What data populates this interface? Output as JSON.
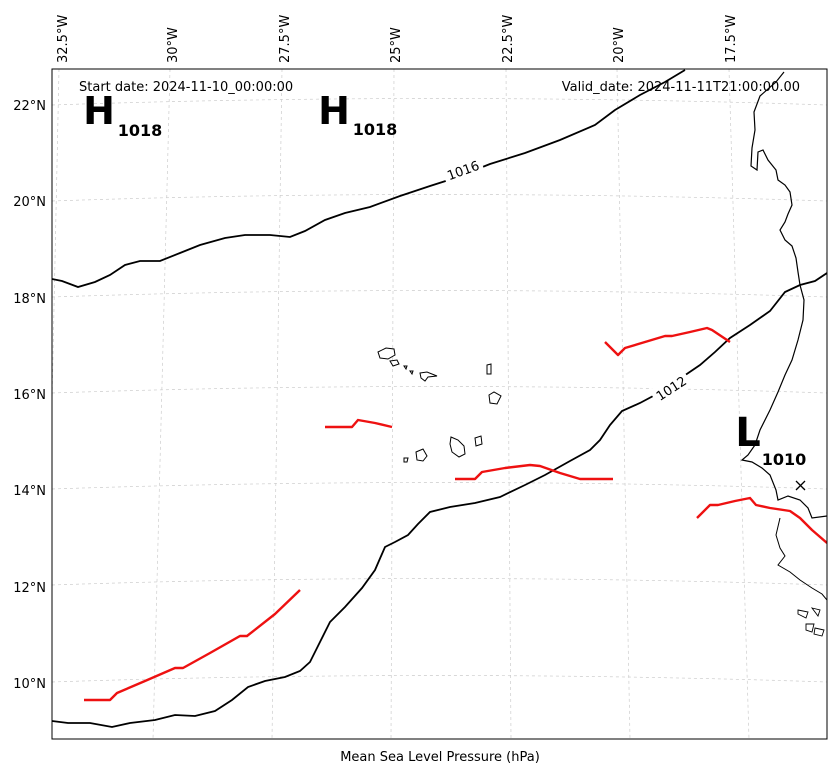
{
  "header": {
    "start_date": "Start date: 2024-11-10_00:00:00",
    "valid_date": "Valid_date: 2024-11-11T21:00:00.00"
  },
  "footer": {
    "caption": "Mean Sea Level Pressure (hPa)"
  },
  "axes": {
    "longitude_ticks": [
      "32.5°W",
      "30°W",
      "27.5°W",
      "25°W",
      "22.5°W",
      "20°W",
      "17.5°W"
    ],
    "latitude_ticks": [
      "22°N",
      "20°N",
      "18°N",
      "16°N",
      "14°N",
      "12°N",
      "10°N"
    ]
  },
  "isobars": [
    {
      "label": "1016"
    },
    {
      "label": "1012"
    }
  ],
  "pressure_centers": [
    {
      "kind": "high",
      "symbol": "H",
      "value": "1018"
    },
    {
      "kind": "high",
      "symbol": "H",
      "value": "1018"
    },
    {
      "kind": "low",
      "symbol": "L",
      "value": "1010"
    }
  ],
  "colors": {
    "isobar": "#000000",
    "trough": "#ee1111",
    "grid": "#cccccc",
    "coast": "#000000"
  }
}
